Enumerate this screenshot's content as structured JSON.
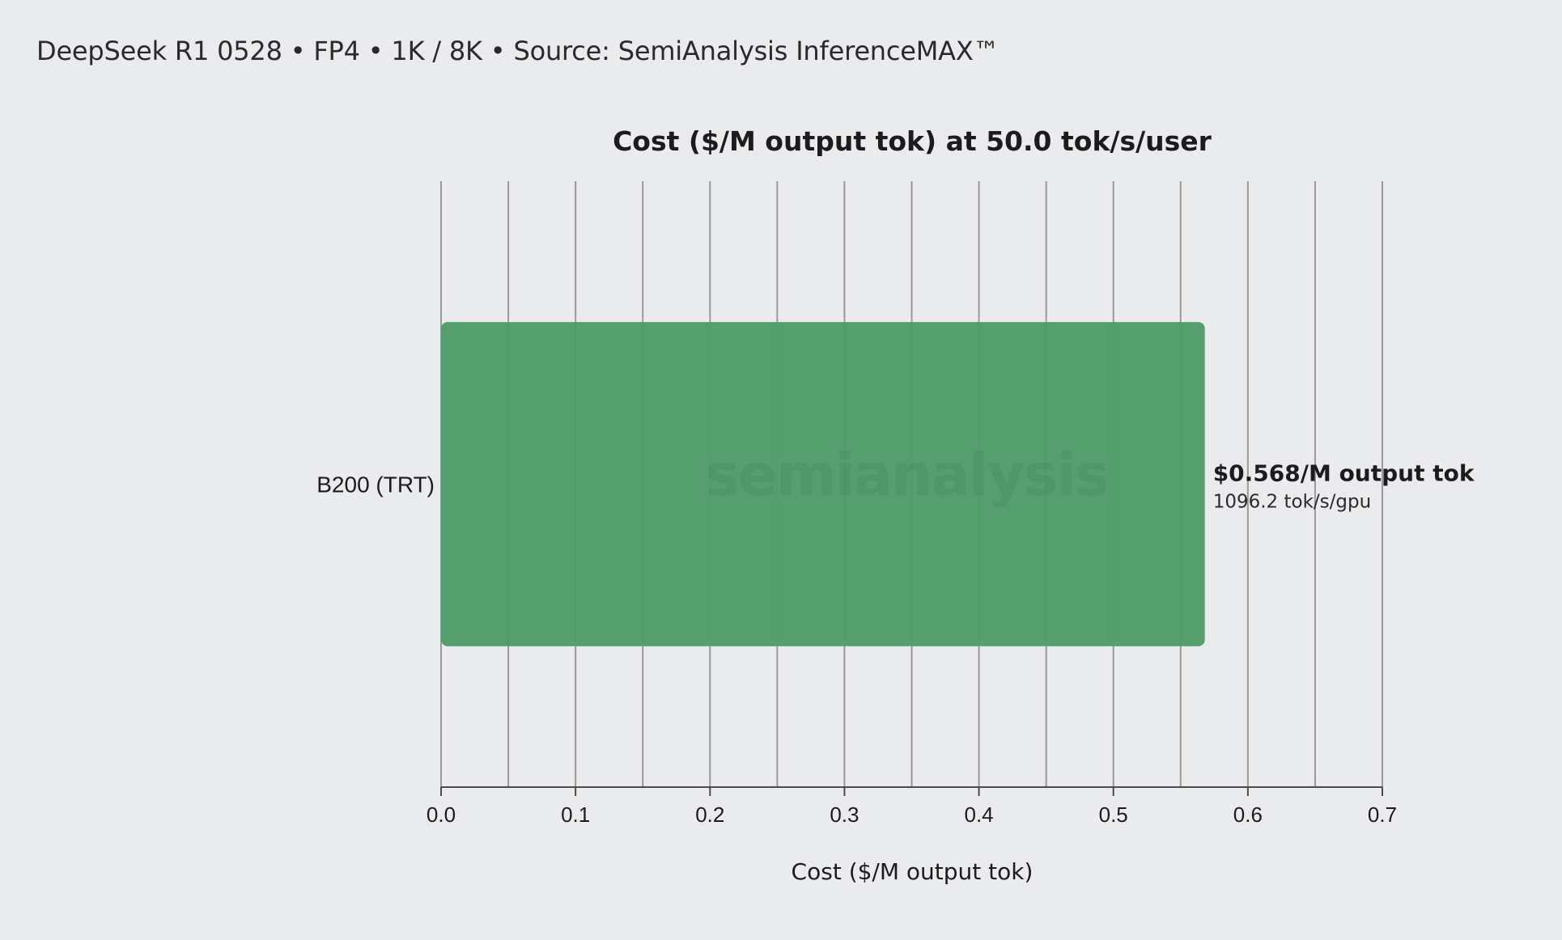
{
  "header": {
    "subtitle": "DeepSeek R1 0528 • FP4 • 1K / 8K • Source: SemiAnalysis InferenceMAX™"
  },
  "watermark_text": "semianalysis",
  "chart_data": {
    "type": "bar",
    "orientation": "horizontal",
    "title": "Cost ($/M output tok) at 50.0 tok/s/user",
    "xlabel": "Cost ($/M output tok)",
    "ylabel": "",
    "xlim": [
      0,
      0.7
    ],
    "x_ticks": [
      0.0,
      0.1,
      0.2,
      0.3,
      0.4,
      0.5,
      0.6,
      0.7
    ],
    "x_tick_labels": [
      "0.0",
      "0.1",
      "0.2",
      "0.3",
      "0.4",
      "0.5",
      "0.6",
      "0.7"
    ],
    "x_minor_grid": [
      0.05,
      0.15,
      0.25,
      0.35,
      0.45,
      0.55,
      0.65
    ],
    "grid": true,
    "categories": [
      "B200 (TRT)"
    ],
    "values": [
      0.568
    ],
    "value_labels": [
      "$0.568/M output tok"
    ],
    "secondary_labels": [
      "1096.2 tok/s/gpu"
    ],
    "bar_color": "#4f9c68"
  }
}
